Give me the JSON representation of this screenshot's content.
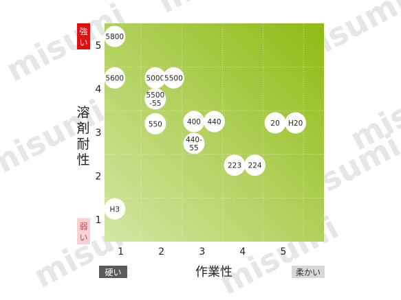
{
  "chart_data": {
    "type": "scatter",
    "xlabel": "作業性",
    "ylabel": "溶剤耐性",
    "x_ticks": [
      1,
      2,
      3,
      4,
      5
    ],
    "y_ticks": [
      1,
      2,
      3,
      4,
      5
    ],
    "xlim": [
      0.6,
      6.0
    ],
    "ylim": [
      0.5,
      5.5
    ],
    "grid": true,
    "x_low_label": "硬い",
    "x_high_label": "柔かい",
    "y_high_label": "強い",
    "y_low_label": "弱い",
    "watermark": "misumi",
    "colors": {
      "plot_gradient_start": "#d3e6a3",
      "plot_gradient_end": "#8fba14",
      "strong": "#e10e12",
      "weak": "#f8d1d5",
      "hard": "#5a5a5a",
      "soft": "#d8d8d8"
    },
    "points": [
      {
        "label": "5800",
        "x": 0.85,
        "y": 5.2
      },
      {
        "label": "5600",
        "x": 0.85,
        "y": 4.25
      },
      {
        "label": "5000",
        "x": 1.85,
        "y": 4.25
      },
      {
        "label": "5500",
        "x": 2.3,
        "y": 4.25
      },
      {
        "label": "5500\n-55",
        "x": 1.85,
        "y": 3.77
      },
      {
        "label": "550",
        "x": 1.85,
        "y": 3.2
      },
      {
        "label": "400",
        "x": 2.8,
        "y": 3.25
      },
      {
        "label": "440",
        "x": 3.3,
        "y": 3.25
      },
      {
        "label": "440-\n55",
        "x": 2.8,
        "y": 2.75
      },
      {
        "label": "20",
        "x": 4.8,
        "y": 3.22
      },
      {
        "label": "H20",
        "x": 5.3,
        "y": 3.22
      },
      {
        "label": "223",
        "x": 3.8,
        "y": 2.25
      },
      {
        "label": "224",
        "x": 4.3,
        "y": 2.25
      },
      {
        "label": "H3",
        "x": 0.85,
        "y": 1.25
      }
    ]
  }
}
